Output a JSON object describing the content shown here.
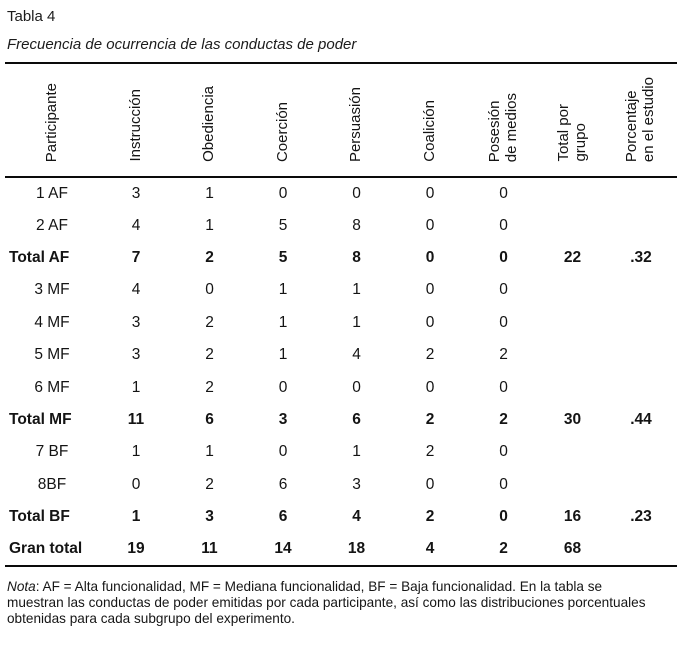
{
  "page": {
    "label": "Tabla 4",
    "title": "Frecuencia de ocurrencia de las conductas de poder"
  },
  "table": {
    "columns": [
      "Participante",
      "Instrucción",
      "Obediencia",
      "Coerción",
      "Persuasión",
      "Coalición",
      "Posesión\nde medios",
      "Total por\ngrupo",
      "Porcentaje\nen el estudio"
    ],
    "rows": [
      {
        "participant": "1 AF",
        "bold": false,
        "values": [
          "3",
          "1",
          "0",
          "0",
          "0",
          "0",
          "",
          ""
        ]
      },
      {
        "participant": "2 AF",
        "bold": false,
        "values": [
          "4",
          "1",
          "5",
          "8",
          "0",
          "0",
          "",
          ""
        ]
      },
      {
        "participant": "Total AF",
        "bold": true,
        "values": [
          "7",
          "2",
          "5",
          "8",
          "0",
          "0",
          "22",
          ".32"
        ]
      },
      {
        "participant": "3 MF",
        "bold": false,
        "values": [
          "4",
          "0",
          "1",
          "1",
          "0",
          "0",
          "",
          ""
        ]
      },
      {
        "participant": "4 MF",
        "bold": false,
        "values": [
          "3",
          "2",
          "1",
          "1",
          "0",
          "0",
          "",
          ""
        ]
      },
      {
        "participant": "5 MF",
        "bold": false,
        "values": [
          "3",
          "2",
          "1",
          "4",
          "2",
          "2",
          "",
          ""
        ]
      },
      {
        "participant": "6 MF",
        "bold": false,
        "values": [
          "1",
          "2",
          "0",
          "0",
          "0",
          "0",
          "",
          ""
        ]
      },
      {
        "participant": "Total MF",
        "bold": true,
        "values": [
          "11",
          "6",
          "3",
          "6",
          "2",
          "2",
          "30",
          ".44"
        ]
      },
      {
        "participant": "7 BF",
        "bold": false,
        "values": [
          "1",
          "1",
          "0",
          "1",
          "2",
          "0",
          "",
          ""
        ]
      },
      {
        "participant": "8BF",
        "bold": false,
        "values": [
          "0",
          "2",
          "6",
          "3",
          "0",
          "0",
          "",
          ""
        ]
      },
      {
        "participant": "Total BF",
        "bold": true,
        "values": [
          "1",
          "3",
          "6",
          "4",
          "2",
          "0",
          "16",
          ".23"
        ]
      },
      {
        "participant": "Gran total",
        "bold": true,
        "values": [
          "19",
          "11",
          "14",
          "18",
          "4",
          "2",
          "68",
          ""
        ]
      }
    ]
  },
  "note": {
    "label": "Nota",
    "text": ":  AF = Alta funcionalidad, MF = Mediana funcionalidad, BF = Baja funcionalidad. En la tabla se\nmuestran las conductas de poder emitidas por cada participante, así como las distribuciones porcentuales\nobtenidas para cada subgrupo del experimento."
  }
}
